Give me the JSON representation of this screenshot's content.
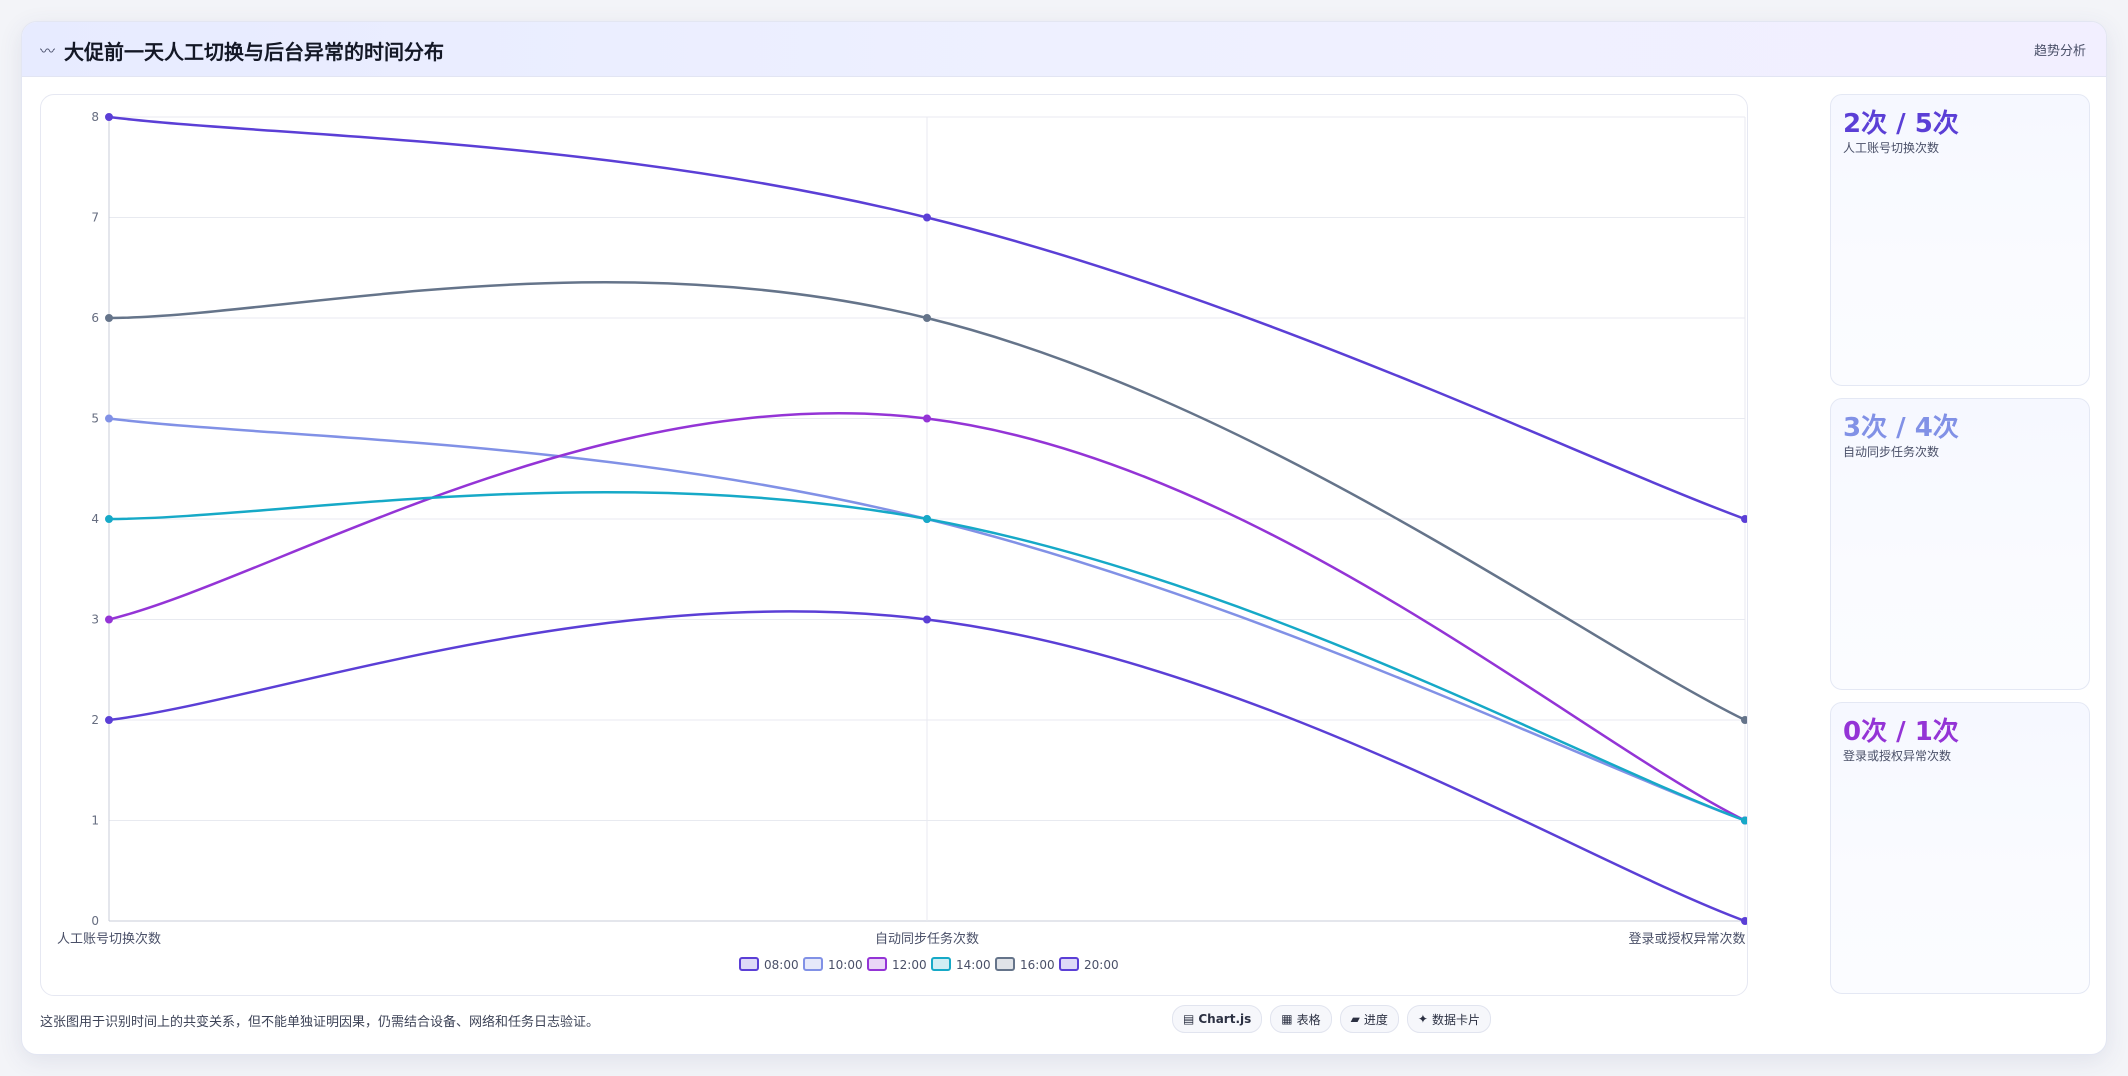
{
  "header": {
    "icon": "wave-icon",
    "title": "大促前一天人工切换与后台异常的时间分布",
    "right_label": "趋势分析"
  },
  "chart_data": {
    "type": "line",
    "categories": [
      "人工账号切换次数",
      "自动同步任务次数",
      "登录或授权异常次数"
    ],
    "ylim": [
      0,
      8
    ],
    "yticks": [
      0,
      1,
      2,
      3,
      4,
      5,
      6,
      7,
      8
    ],
    "grid": true,
    "smooth": true,
    "legend_position": "bottom",
    "series": [
      {
        "name": "08:00",
        "color": "#5b3fd6",
        "values": [
          2,
          3,
          0
        ]
      },
      {
        "name": "10:00",
        "color": "#8191e6",
        "values": [
          5,
          4,
          1
        ]
      },
      {
        "name": "12:00",
        "color": "#9434d6",
        "values": [
          3,
          5,
          1
        ]
      },
      {
        "name": "14:00",
        "color": "#16a9c7",
        "values": [
          4,
          4,
          1
        ]
      },
      {
        "name": "16:00",
        "color": "#65748a",
        "values": [
          6,
          6,
          2
        ]
      },
      {
        "name": "20:00",
        "color": "#5b3fd6",
        "values": [
          8,
          7,
          4
        ]
      }
    ]
  },
  "side_cards": [
    {
      "value": "2次 / 5次",
      "label": "人工账号切换次数",
      "color": "#5b3fd6"
    },
    {
      "value": "3次 / 4次",
      "label": "自动同步任务次数",
      "color": "#8191e6"
    },
    {
      "value": "0次 / 1次",
      "label": "登录或授权异常次数",
      "color": "#9434d6"
    }
  ],
  "footer": {
    "note": "这张图用于识别时间上的共变关系，但不能单独证明因果，仍需结合设备、网络和任务日志验证。",
    "actions": [
      {
        "icon": "chart-icon",
        "label": "Chart.js"
      },
      {
        "icon": "table-icon",
        "label": "表格"
      },
      {
        "icon": "progress-icon",
        "label": "进度"
      },
      {
        "icon": "sparkle-icon",
        "label": "数据卡片"
      }
    ]
  }
}
